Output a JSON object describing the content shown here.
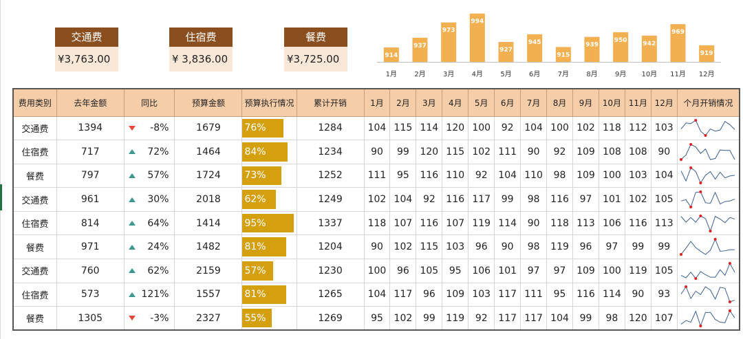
{
  "summary": [
    {
      "label": "交通费",
      "value": "¥3,763.00"
    },
    {
      "label": "住宿费",
      "value": "¥ 3,836.00"
    },
    {
      "label": "餐费",
      "value": "¥3,725.00"
    }
  ],
  "chart_data": {
    "type": "bar",
    "categories": [
      "1月",
      "2月",
      "3月",
      "4月",
      "5月",
      "6月",
      "7月",
      "8月",
      "9月",
      "10月",
      "11月",
      "12月"
    ],
    "values": [
      914,
      937,
      973,
      994,
      927,
      945,
      915,
      939,
      950,
      942,
      969,
      919
    ],
    "ylim": [
      880,
      1000
    ],
    "color": "#f2b050"
  },
  "table": {
    "headers": [
      "费用类别",
      "去年金额",
      "同比",
      "预算金额",
      "预算执行情况",
      "累计开销",
      "1月",
      "2月",
      "3月",
      "4月",
      "5月",
      "6月",
      "7月",
      "8月",
      "9月",
      "10月",
      "11月",
      "12月",
      "个月开销情况"
    ],
    "rows": [
      {
        "cat": "交通费",
        "last": "1394",
        "dir": "down",
        "yoy": "-8%",
        "budget": "1679",
        "exec": "76%",
        "exec_frac": 0.76,
        "total": "1284",
        "months": [
          104,
          115,
          114,
          120,
          100,
          92,
          104,
          100,
          102,
          118,
          112,
          103
        ]
      },
      {
        "cat": "住宿费",
        "last": "717",
        "dir": "up",
        "yoy": "72%",
        "budget": "1464",
        "exec": "84%",
        "exec_frac": 0.84,
        "total": "1234",
        "months": [
          90,
          99,
          120,
          115,
          102,
          111,
          90,
          92,
          109,
          108,
          108,
          90
        ]
      },
      {
        "cat": "餐费",
        "last": "797",
        "dir": "up",
        "yoy": "57%",
        "budget": "1724",
        "exec": "73%",
        "exec_frac": 0.73,
        "total": "1252",
        "months": [
          111,
          95,
          116,
          110,
          92,
          104,
          110,
          98,
          109,
          100,
          103,
          104
        ]
      },
      {
        "cat": "交通费",
        "last": "961",
        "dir": "up",
        "yoy": "30%",
        "budget": "2018",
        "exec": "62%",
        "exec_frac": 0.62,
        "total": "1249",
        "months": [
          102,
          104,
          92,
          116,
          117,
          99,
          98,
          116,
          97,
          101,
          102,
          105
        ]
      },
      {
        "cat": "住宿费",
        "last": "814",
        "dir": "up",
        "yoy": "64%",
        "budget": "1414",
        "exec": "95%",
        "exec_frac": 0.95,
        "total": "1337",
        "months": [
          118,
          107,
          116,
          107,
          119,
          114,
          90,
          118,
          113,
          106,
          116,
          113
        ]
      },
      {
        "cat": "餐费",
        "last": "971",
        "dir": "up",
        "yoy": "24%",
        "budget": "1482",
        "exec": "81%",
        "exec_frac": 0.81,
        "total": "1204",
        "months": [
          90,
          102,
          115,
          103,
          96,
          90,
          98,
          119,
          96,
          97,
          99,
          99
        ]
      },
      {
        "cat": "交通费",
        "last": "760",
        "dir": "up",
        "yoy": "62%",
        "budget": "2159",
        "exec": "57%",
        "exec_frac": 0.57,
        "total": "1230",
        "months": [
          100,
          96,
          105,
          95,
          106,
          101,
          97,
          97,
          109,
          100,
          119,
          105
        ]
      },
      {
        "cat": "住宿费",
        "last": "573",
        "dir": "up",
        "yoy": "121%",
        "budget": "1557",
        "exec": "81%",
        "exec_frac": 0.81,
        "total": "1265",
        "months": [
          104,
          117,
          96,
          109,
          103,
          117,
          111,
          95,
          116,
          114,
          90,
          93
        ]
      },
      {
        "cat": "餐费",
        "last": "1305",
        "dir": "down",
        "yoy": "-3%",
        "budget": "2327",
        "exec": "55%",
        "exec_frac": 0.55,
        "total": "1269",
        "months": [
          95,
          102,
          99,
          119,
          92,
          117,
          117,
          104,
          99,
          98,
          120,
          107
        ]
      }
    ]
  }
}
